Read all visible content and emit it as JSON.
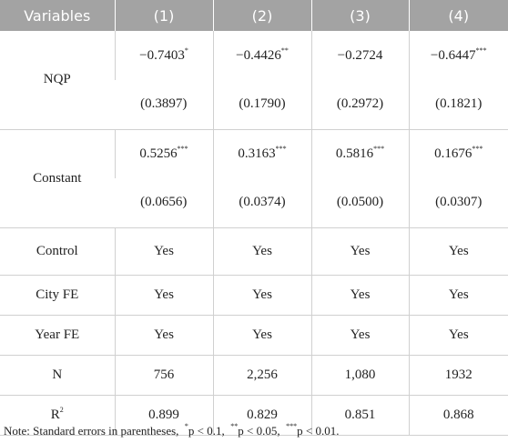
{
  "table": {
    "header": [
      "Variables",
      "(1)",
      "(2)",
      "(3)",
      "(4)"
    ],
    "coef_rows": [
      {
        "label": "NQP",
        "coefs": [
          {
            "text": "−0.7403",
            "stars": "*"
          },
          {
            "text": "−0.4426",
            "stars": "**"
          },
          {
            "text": "−0.2724"
          },
          {
            "text": "−0.6447",
            "stars": "***"
          }
        ],
        "ses": [
          "(0.3897)",
          "(0.1790)",
          "(0.2972)",
          "(0.1821)"
        ]
      },
      {
        "label": "Constant",
        "coefs": [
          {
            "text": "0.5256",
            "stars": "***"
          },
          {
            "text": "0.3163",
            "stars": "***"
          },
          {
            "text": "0.5816",
            "stars": "***"
          },
          {
            "text": "0.1676",
            "stars": "***"
          }
        ],
        "ses": [
          "(0.0656)",
          "(0.0374)",
          "(0.0500)",
          "(0.0307)"
        ]
      }
    ],
    "rows": [
      {
        "label": "Control",
        "cells": [
          "Yes",
          "Yes",
          "Yes",
          "Yes"
        ]
      },
      {
        "label": "City FE",
        "cells": [
          "Yes",
          "Yes",
          "Yes",
          "Yes"
        ]
      },
      {
        "label": "Year FE",
        "cells": [
          "Yes",
          "Yes",
          "Yes",
          "Yes"
        ]
      },
      {
        "label": "N",
        "cells": [
          "756",
          "2,256",
          "1,080",
          "1932"
        ]
      },
      {
        "label": "R",
        "label_sup": "2",
        "cells": [
          "0.899",
          "0.829",
          "0.851",
          "0.868"
        ]
      }
    ]
  },
  "note": {
    "prefix": "Note: Standard errors in parentheses,",
    "items": [
      {
        "sup": "*",
        "text": "p < 0.1,"
      },
      {
        "sup": "**",
        "text": "p < 0.05,"
      },
      {
        "sup": "***",
        "text": "p < 0.01."
      }
    ]
  }
}
